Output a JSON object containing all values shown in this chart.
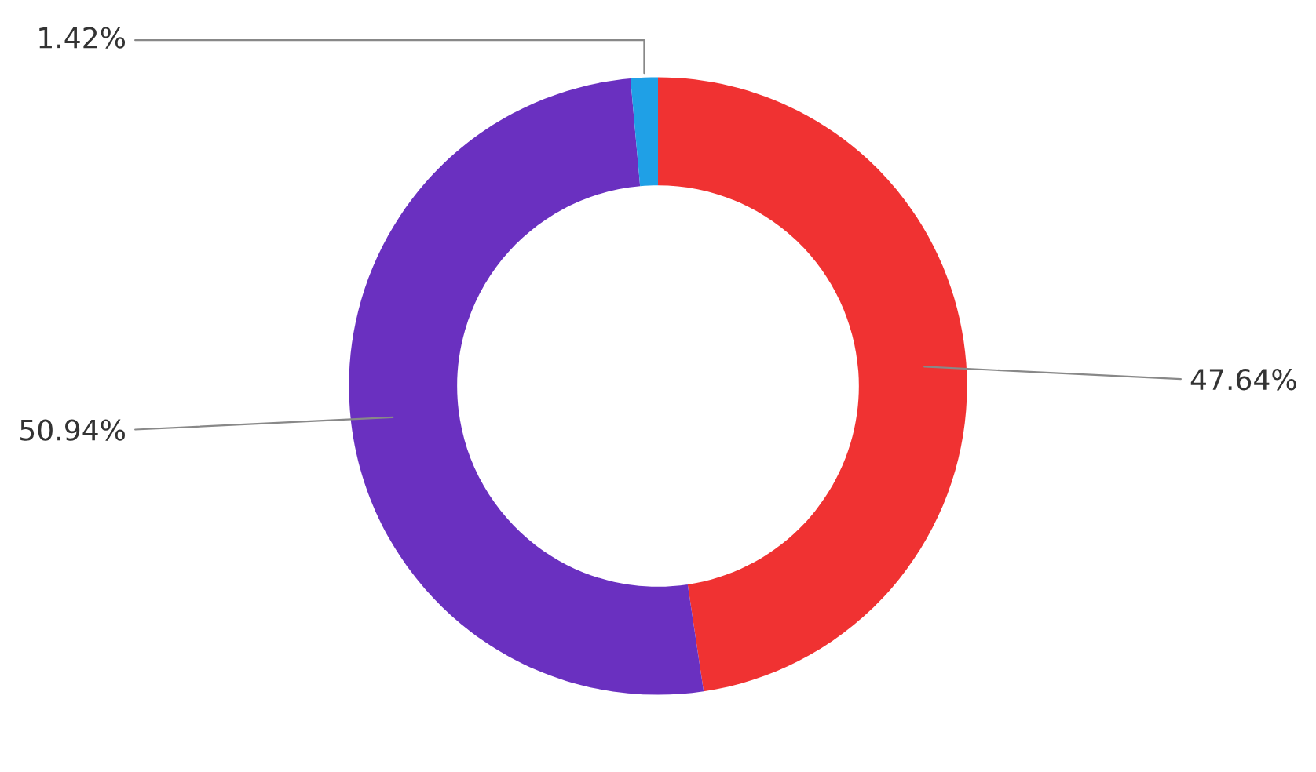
{
  "chart_data": {
    "type": "donut",
    "categories": [
      null,
      null,
      null
    ],
    "values": [
      47.64,
      50.94,
      1.42
    ],
    "colors": [
      "#f03232",
      "#6a30c0",
      "#1fa0e6"
    ],
    "value_labels": [
      "47.64%",
      "50.94%",
      "1.42%"
    ]
  }
}
